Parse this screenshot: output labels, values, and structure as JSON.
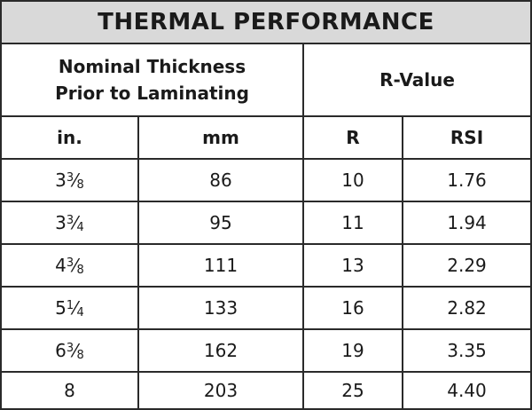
{
  "title": "THERMAL PERFORMANCE",
  "headers": {
    "group1_line1": "Nominal Thickness",
    "group1_line2": "Prior to Laminating",
    "group2": "R-Value",
    "col_in": "in.",
    "col_mm": "mm",
    "col_r": "R",
    "col_rsi": "RSI"
  },
  "rows": [
    {
      "in_whole": "3",
      "in_num": "3",
      "in_den": "8",
      "mm": "86",
      "r": "10",
      "rsi": "1.76"
    },
    {
      "in_whole": "3",
      "in_num": "3",
      "in_den": "4",
      "mm": "95",
      "r": "11",
      "rsi": "1.94"
    },
    {
      "in_whole": "4",
      "in_num": "3",
      "in_den": "8",
      "mm": "111",
      "r": "13",
      "rsi": "2.29"
    },
    {
      "in_whole": "5",
      "in_num": "1",
      "in_den": "4",
      "mm": "133",
      "r": "16",
      "rsi": "2.82"
    },
    {
      "in_whole": "6",
      "in_num": "3",
      "in_den": "8",
      "mm": "162",
      "r": "19",
      "rsi": "3.35"
    },
    {
      "in_whole": "8",
      "in_num": "",
      "in_den": "",
      "mm": "203",
      "r": "25",
      "rsi": "4.40"
    }
  ]
}
